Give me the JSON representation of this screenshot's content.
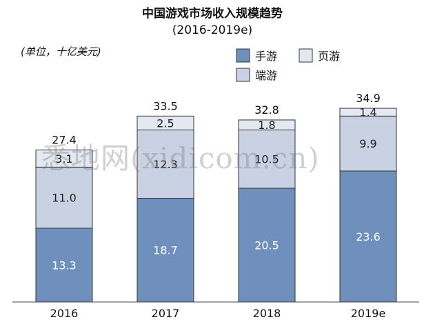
{
  "chart_data": {
    "type": "bar",
    "stacked": true,
    "title": "中国游戏市场收入规模趋势",
    "subtitle": "(2016-2019e)",
    "unit_label": "(单位，十亿美元)",
    "xlabel": "",
    "ylabel": "",
    "categories": [
      "2016",
      "2017",
      "2018",
      "2019e"
    ],
    "totals": [
      "27.4",
      "33.5",
      "32.8",
      "34.9"
    ],
    "series": [
      {
        "name": "手游",
        "values": [
          13.3,
          18.7,
          20.5,
          23.6
        ],
        "labels": [
          "13.3",
          "18.7",
          "20.5",
          "23.6"
        ],
        "color": "#6f8fbd",
        "label_color": "#ffffff"
      },
      {
        "name": "端游",
        "values": [
          11.0,
          12.3,
          10.5,
          9.9
        ],
        "labels": [
          "11.0",
          "12.3",
          "10.5",
          "9.9"
        ],
        "color": "#c9d2e3",
        "label_color": "#222222"
      },
      {
        "name": "页游",
        "values": [
          3.1,
          2.5,
          1.8,
          1.4
        ],
        "labels": [
          "3.1",
          "2.5",
          "1.8",
          "1.4"
        ],
        "color": "#e3e8f1",
        "label_color": "#222222"
      }
    ],
    "legend_order": [
      0,
      2,
      1
    ],
    "legend_position": "top-right",
    "ylim": [
      0,
      40
    ],
    "grid": false
  },
  "watermark": "悉地网(xidicom.cn)"
}
